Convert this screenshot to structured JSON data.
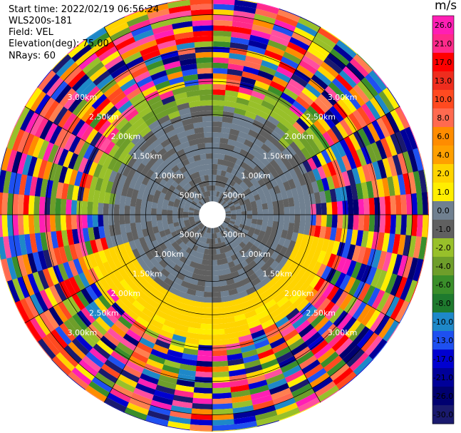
{
  "header": {
    "start_time": "Start time: 2022/02/19 06:56:24",
    "site": "WLS200s-181",
    "field": "Field: VEL",
    "elevation": "Elevation(deg): 75.00",
    "nrays": "NRays: 60"
  },
  "chart_data": {
    "type": "heatmap",
    "projection": "polar-ppi",
    "range_rings": [
      "500m",
      "1.00km",
      "1.50km",
      "2.00km",
      "2.50km",
      "3.00km"
    ],
    "range_rings_km": [
      0.5,
      1.0,
      1.5,
      2.0,
      2.5,
      3.0
    ],
    "max_range_km": 3.25,
    "n_rays": 60,
    "gate_km": 0.08,
    "spokes_deg": [
      0,
      30,
      60,
      90,
      120,
      150,
      180,
      210,
      240,
      270,
      300,
      330
    ],
    "colorbar": {
      "unit": "m/s",
      "ticks": [
        "26.0",
        "21.0",
        "17.0",
        "13.0",
        "10.0",
        "8.0",
        "6.0",
        "4.0",
        "2.0",
        "1.0",
        "0.0",
        "-1.0",
        "-2.0",
        "-4.0",
        "-6.0",
        "-8.0",
        "-10.0",
        "-13.0",
        "-17.0",
        "-21.0",
        "-26.0",
        "-30.0"
      ],
      "colors": [
        "#ff1fb4",
        "#ff2a8a",
        "#ff0000",
        "#ee2d1e",
        "#ff4a20",
        "#ff6a50",
        "#ff8c00",
        "#ffa000",
        "#ffd400",
        "#ffee00",
        "#708090",
        "#606060",
        "#98c02a",
        "#6e9e2a",
        "#3a8e2a",
        "#1e7a2e",
        "#1e88c8",
        "#1e50f0",
        "#0000d0",
        "#000099",
        "#000070",
        "#1a1a6e"
      ]
    },
    "zones_km": {
      "near_zero": [
        0.2,
        1.5
      ],
      "outer_noise": [
        1.6,
        3.25
      ]
    }
  }
}
